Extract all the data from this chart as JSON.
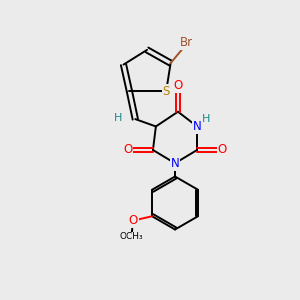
{
  "bg_color": "#ebebeb",
  "bond_color": "#000000",
  "atom_colors": {
    "Br": "#A0522D",
    "S": "#B8860B",
    "O": "#FF0000",
    "N": "#0000FF",
    "H": "#1a8a8a",
    "C": "#000000"
  },
  "font_size": 8.5,
  "lw": 1.4
}
